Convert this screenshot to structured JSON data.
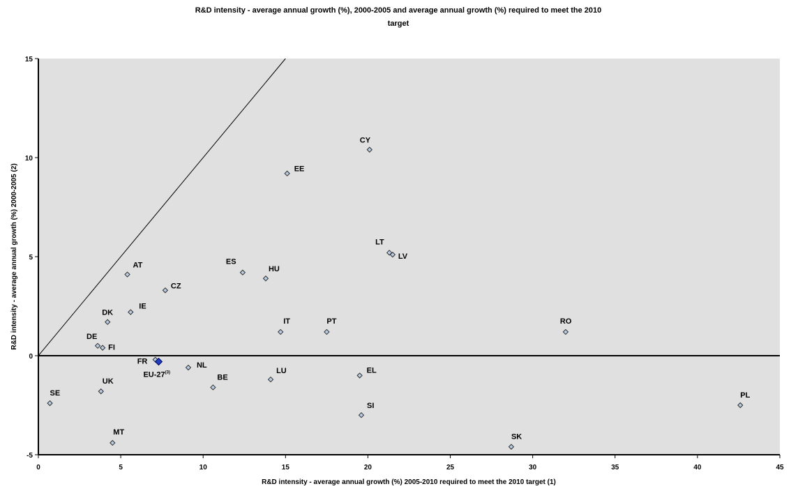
{
  "chart_data": {
    "type": "scatter",
    "title": "R&D intensity - average annual growth (%), 2000-2005 and average annual growth (%) required to meet the 2010 target",
    "title_lines": [
      "R&D intensity - average annual growth (%), 2000-2005 and average annual growth (%) required to meet the 2010",
      "target"
    ],
    "xlabel": "R&D intensity - average annual growth (%) 2005-2010 required to meet the 2010 target (1)",
    "ylabel": "R&D intensity - average annual growth (%) 2000-2005 (2)",
    "xlim": [
      0,
      45
    ],
    "ylim": [
      -5,
      15
    ],
    "x_ticks": [
      0,
      5,
      10,
      15,
      20,
      25,
      30,
      35,
      40,
      45
    ],
    "y_ticks": [
      -5,
      0,
      5,
      10,
      15
    ],
    "grid": false,
    "plot_background": "#e0e0e0",
    "marker_color": "#b8cce4",
    "highlight_color": "#2040c0",
    "reference_lines": [
      {
        "type": "diagonal",
        "points": [
          [
            0,
            0
          ],
          [
            15,
            15
          ]
        ]
      },
      {
        "type": "horizontal",
        "y": 0
      }
    ],
    "points": [
      {
        "label": "CY",
        "x": 20.1,
        "y": 10.4
      },
      {
        "label": "EE",
        "x": 15.1,
        "y": 9.2
      },
      {
        "label": "LT",
        "x": 21.3,
        "y": 5.2
      },
      {
        "label": "LV",
        "x": 21.5,
        "y": 5.1
      },
      {
        "label": "AT",
        "x": 5.4,
        "y": 4.1
      },
      {
        "label": "ES",
        "x": 12.4,
        "y": 4.2
      },
      {
        "label": "HU",
        "x": 13.8,
        "y": 3.9
      },
      {
        "label": "CZ",
        "x": 7.7,
        "y": 3.3
      },
      {
        "label": "DK",
        "x": 4.2,
        "y": 1.7
      },
      {
        "label": "IE",
        "x": 5.6,
        "y": 2.2
      },
      {
        "label": "IT",
        "x": 14.7,
        "y": 1.2
      },
      {
        "label": "PT",
        "x": 17.5,
        "y": 1.2
      },
      {
        "label": "RO",
        "x": 32.0,
        "y": 1.2
      },
      {
        "label": "DE",
        "x": 3.6,
        "y": 0.5
      },
      {
        "label": "FI",
        "x": 3.9,
        "y": 0.4
      },
      {
        "label": "FR",
        "x": 7.1,
        "y": -0.2
      },
      {
        "label": "EU-27",
        "label_sup": "(3)",
        "x": 7.3,
        "y": -0.3,
        "highlight": true
      },
      {
        "label": "NL",
        "x": 9.1,
        "y": -0.6
      },
      {
        "label": "BE",
        "x": 10.6,
        "y": -1.6
      },
      {
        "label": "LU",
        "x": 14.1,
        "y": -1.2
      },
      {
        "label": "EL",
        "x": 19.5,
        "y": -1.0
      },
      {
        "label": "UK",
        "x": 3.8,
        "y": -1.8
      },
      {
        "label": "SE",
        "x": 0.7,
        "y": -2.4
      },
      {
        "label": "SI",
        "x": 19.6,
        "y": -3.0
      },
      {
        "label": "PL",
        "x": 42.6,
        "y": -2.5
      },
      {
        "label": "MT",
        "x": 4.5,
        "y": -4.4
      },
      {
        "label": "SK",
        "x": 28.7,
        "y": -4.6
      }
    ]
  }
}
